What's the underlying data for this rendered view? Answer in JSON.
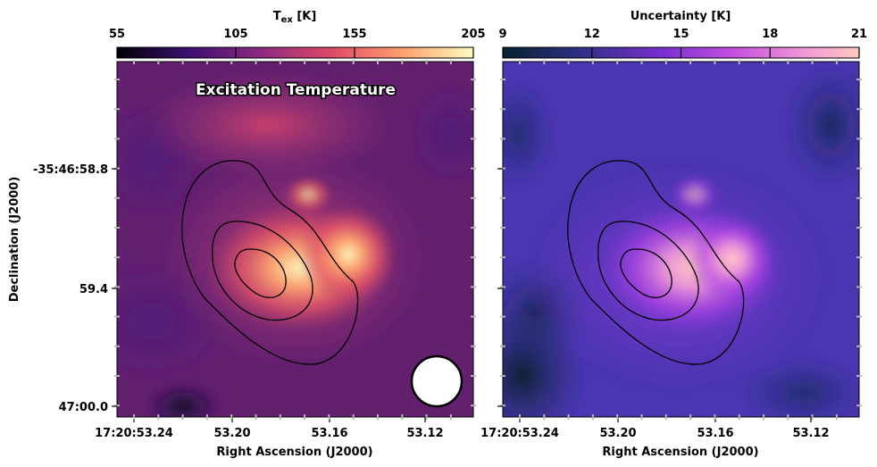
{
  "chart_data": [
    {
      "type": "heatmap",
      "title": "Excitation Temperature",
      "colorbar": {
        "label_main": "T",
        "label_sub": "ex",
        "label_unit": " [K]",
        "ticks": [
          55,
          105,
          155,
          205
        ],
        "range": [
          55,
          205
        ],
        "colormap": "magma",
        "colors": [
          "#000004",
          "#3b0f70",
          "#8c2981",
          "#de4968",
          "#fe9f6d",
          "#fcfdbf"
        ]
      },
      "xlabel": "Right Ascension (J2000)",
      "ylabel": "Declination (J2000)",
      "xticks": [
        "17:20:53.24",
        "53.20",
        "53.16",
        "53.12"
      ],
      "yticks": [
        "-35:46:58.8",
        "59.4",
        "47:00.0"
      ],
      "contour_levels": 3,
      "beam": "circle"
    },
    {
      "type": "heatmap",
      "title": "",
      "colorbar": {
        "label": "Uncertainty [K]",
        "ticks": [
          9,
          12,
          15,
          18,
          21
        ],
        "range": [
          9,
          21
        ],
        "colormap": "berlin-like",
        "colors": [
          "#06212e",
          "#2a2f7e",
          "#7a2fd0",
          "#c64fe0",
          "#f19ad6",
          "#ffc8c0"
        ]
      },
      "xlabel": "Right Ascension (J2000)",
      "xticks": [
        "17:20:53.24",
        "53.20",
        "53.16",
        "53.12"
      ],
      "contour_levels": 3
    }
  ]
}
